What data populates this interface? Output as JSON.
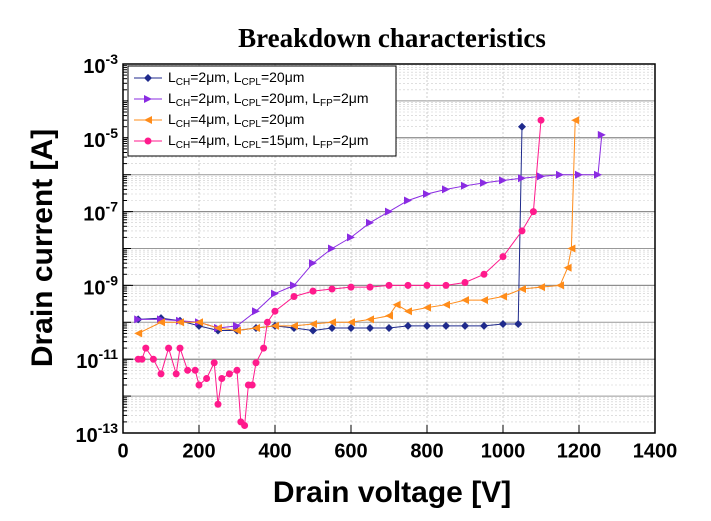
{
  "chart_data": {
    "type": "line",
    "title": "Breakdown characteristics",
    "x_label": "Drain voltage [V]",
    "y_label": "Drain current [A]",
    "log_y": true,
    "grid": true,
    "legend": "upper left",
    "xlim": [
      0,
      1400
    ],
    "xticks": [
      0,
      200,
      400,
      600,
      800,
      1000,
      1200,
      1400
    ],
    "ylim": [
      1e-13,
      0.001
    ],
    "yticks": [
      {
        "value": 0.001,
        "label": "10-3"
      },
      {
        "value": 1e-05,
        "label": "10-5"
      },
      {
        "value": 1e-07,
        "label": "10-7"
      },
      {
        "value": 1e-09,
        "label": "10-9"
      },
      {
        "value": 1e-11,
        "label": "10-11"
      },
      {
        "value": 1e-13,
        "label": "10-13"
      }
    ],
    "series": [
      {
        "name": "LCH=2μm, LCPL=20μm",
        "color": "#1f2a8c",
        "marker": "diamond",
        "x": [
          40,
          100,
          150,
          200,
          250,
          300,
          350,
          400,
          450,
          500,
          550,
          600,
          650,
          700,
          750,
          800,
          850,
          900,
          950,
          1000,
          1040,
          1050
        ],
        "values": [
          1.2e-10,
          1.3e-10,
          1.1e-10,
          8e-11,
          6e-11,
          6e-11,
          7e-11,
          8e-11,
          7e-11,
          6e-11,
          7e-11,
          7e-11,
          7e-11,
          7e-11,
          8e-11,
          8e-11,
          8e-11,
          8e-11,
          8e-11,
          9e-11,
          9e-11,
          2e-05
        ]
      },
      {
        "name": "LCH=2μm, LCPL=20μm, LFP=2μm",
        "color": "#8a2be2",
        "marker": "triangle-right",
        "x": [
          40,
          100,
          150,
          200,
          250,
          300,
          350,
          400,
          450,
          500,
          550,
          600,
          650,
          700,
          750,
          800,
          850,
          900,
          950,
          1000,
          1050,
          1100,
          1150,
          1200,
          1250,
          1260
        ],
        "values": [
          1.2e-10,
          1.2e-10,
          1.1e-10,
          1e-10,
          7e-11,
          8e-11,
          2e-10,
          6e-10,
          1e-09,
          4e-09,
          1e-08,
          2e-08,
          5e-08,
          1e-07,
          2e-07,
          3e-07,
          4e-07,
          5e-07,
          6e-07,
          7e-07,
          8e-07,
          9e-07,
          1e-06,
          1e-06,
          1e-06,
          1.2e-05
        ]
      },
      {
        "name": "LCH=4μm, LCPL=20μm",
        "color": "#ff8c1a",
        "marker": "triangle-left",
        "x": [
          40,
          100,
          150,
          200,
          250,
          300,
          350,
          400,
          450,
          500,
          550,
          600,
          650,
          700,
          720,
          750,
          800,
          850,
          900,
          950,
          1000,
          1050,
          1100,
          1150,
          1170,
          1180,
          1190
        ],
        "values": [
          5e-11,
          1e-10,
          1e-10,
          1e-10,
          7e-11,
          6e-11,
          7e-11,
          8e-11,
          8e-11,
          9e-11,
          1e-10,
          1e-10,
          1.2e-10,
          1.5e-10,
          3e-10,
          2e-10,
          2.5e-10,
          3e-10,
          4e-10,
          4e-10,
          5e-10,
          8e-10,
          9e-10,
          1e-09,
          3e-09,
          1e-08,
          3e-05
        ]
      },
      {
        "name": "LCH=4μm, LCPL=15μm, LFP=2μm",
        "color": "#ff1a8c",
        "marker": "circle",
        "x": [
          40,
          50,
          60,
          80,
          100,
          120,
          140,
          150,
          170,
          190,
          200,
          220,
          240,
          250,
          260,
          280,
          300,
          310,
          320,
          330,
          340,
          350,
          370,
          380,
          400,
          450,
          500,
          550,
          600,
          650,
          700,
          750,
          800,
          850,
          900,
          950,
          1000,
          1050,
          1080,
          1100
        ],
        "values": [
          1e-11,
          1e-11,
          2e-11,
          1e-11,
          4e-12,
          2e-11,
          4e-12,
          2e-11,
          5e-12,
          5e-12,
          2e-12,
          3e-12,
          8e-12,
          6e-13,
          3e-12,
          4e-12,
          5e-12,
          2e-13,
          1.6e-13,
          2e-12,
          2e-12,
          8e-12,
          2e-11,
          1e-10,
          2e-10,
          5e-10,
          7e-10,
          8e-10,
          9e-10,
          9e-10,
          1e-09,
          1e-09,
          1e-09,
          1e-09,
          1.2e-09,
          2e-09,
          6e-09,
          3e-08,
          1e-07,
          3e-05
        ]
      }
    ]
  }
}
